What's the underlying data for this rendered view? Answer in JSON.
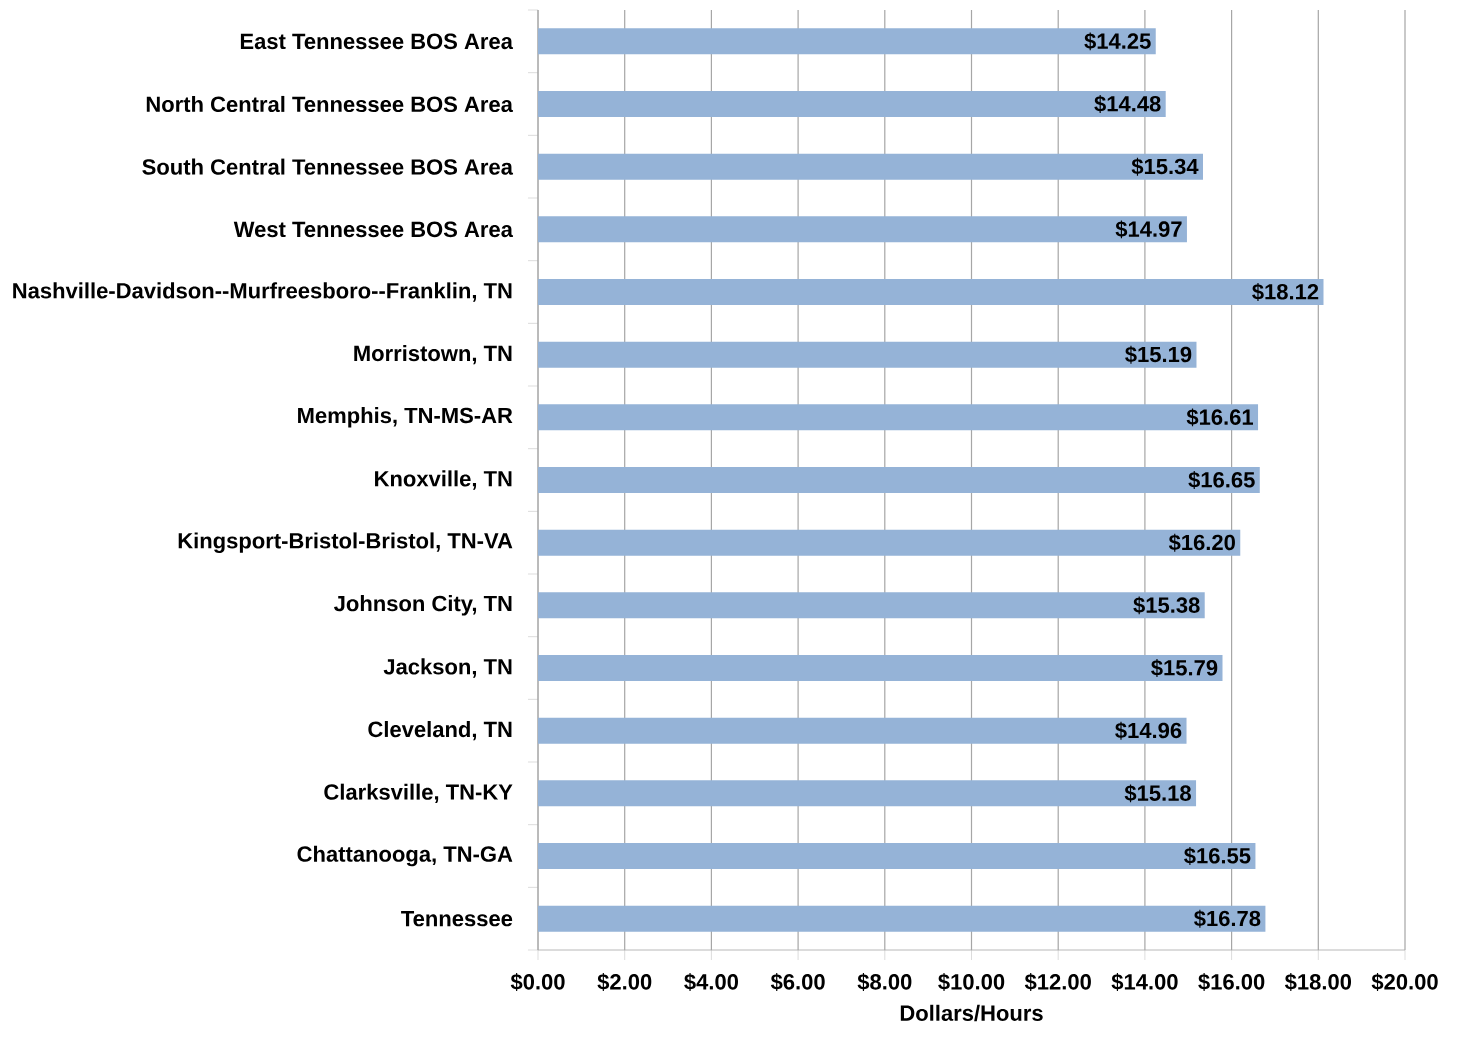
{
  "chart_data": {
    "type": "bar",
    "orientation": "horizontal",
    "xlabel": "Dollars/Hours",
    "categories": [
      "East Tennessee BOS Area",
      "North Central Tennessee BOS Area",
      "South Central Tennessee BOS Area",
      "West Tennessee BOS Area",
      "Nashville-Davidson--Murfreesboro--Franklin, TN",
      "Morristown, TN",
      "Memphis, TN-MS-AR",
      "Knoxville, TN",
      "Kingsport-Bristol-Bristol, TN-VA",
      "Johnson City, TN",
      "Jackson, TN",
      "Cleveland, TN",
      "Clarksville, TN-KY",
      "Chattanooga, TN-GA",
      "Tennessee"
    ],
    "values": [
      14.25,
      14.48,
      15.34,
      14.97,
      18.12,
      15.19,
      16.61,
      16.65,
      16.2,
      15.38,
      15.79,
      14.96,
      15.18,
      16.55,
      16.78
    ],
    "value_labels": [
      "$14.25",
      "$14.48",
      "$15.34",
      "$14.97",
      "$18.12",
      "$15.19",
      "$16.61",
      "$16.65",
      "$16.20",
      "$15.38",
      "$15.79",
      "$14.96",
      "$15.18",
      "$16.55",
      "$16.78"
    ],
    "color": "#95b3d7",
    "xlim": [
      0,
      20
    ],
    "xticks": [
      {
        "value": 0,
        "label": "$0.00"
      },
      {
        "value": 2,
        "label": "$2.00"
      },
      {
        "value": 4,
        "label": "$4.00"
      },
      {
        "value": 6,
        "label": "$6.00"
      },
      {
        "value": 8,
        "label": "$8.00"
      },
      {
        "value": 10,
        "label": "$10.00"
      },
      {
        "value": 12,
        "label": "$12.00"
      },
      {
        "value": 14,
        "label": "$14.00"
      },
      {
        "value": 16,
        "label": "$16.00"
      },
      {
        "value": 18,
        "label": "$18.00"
      },
      {
        "value": 20,
        "label": "$20.00"
      }
    ],
    "grid": "x"
  }
}
